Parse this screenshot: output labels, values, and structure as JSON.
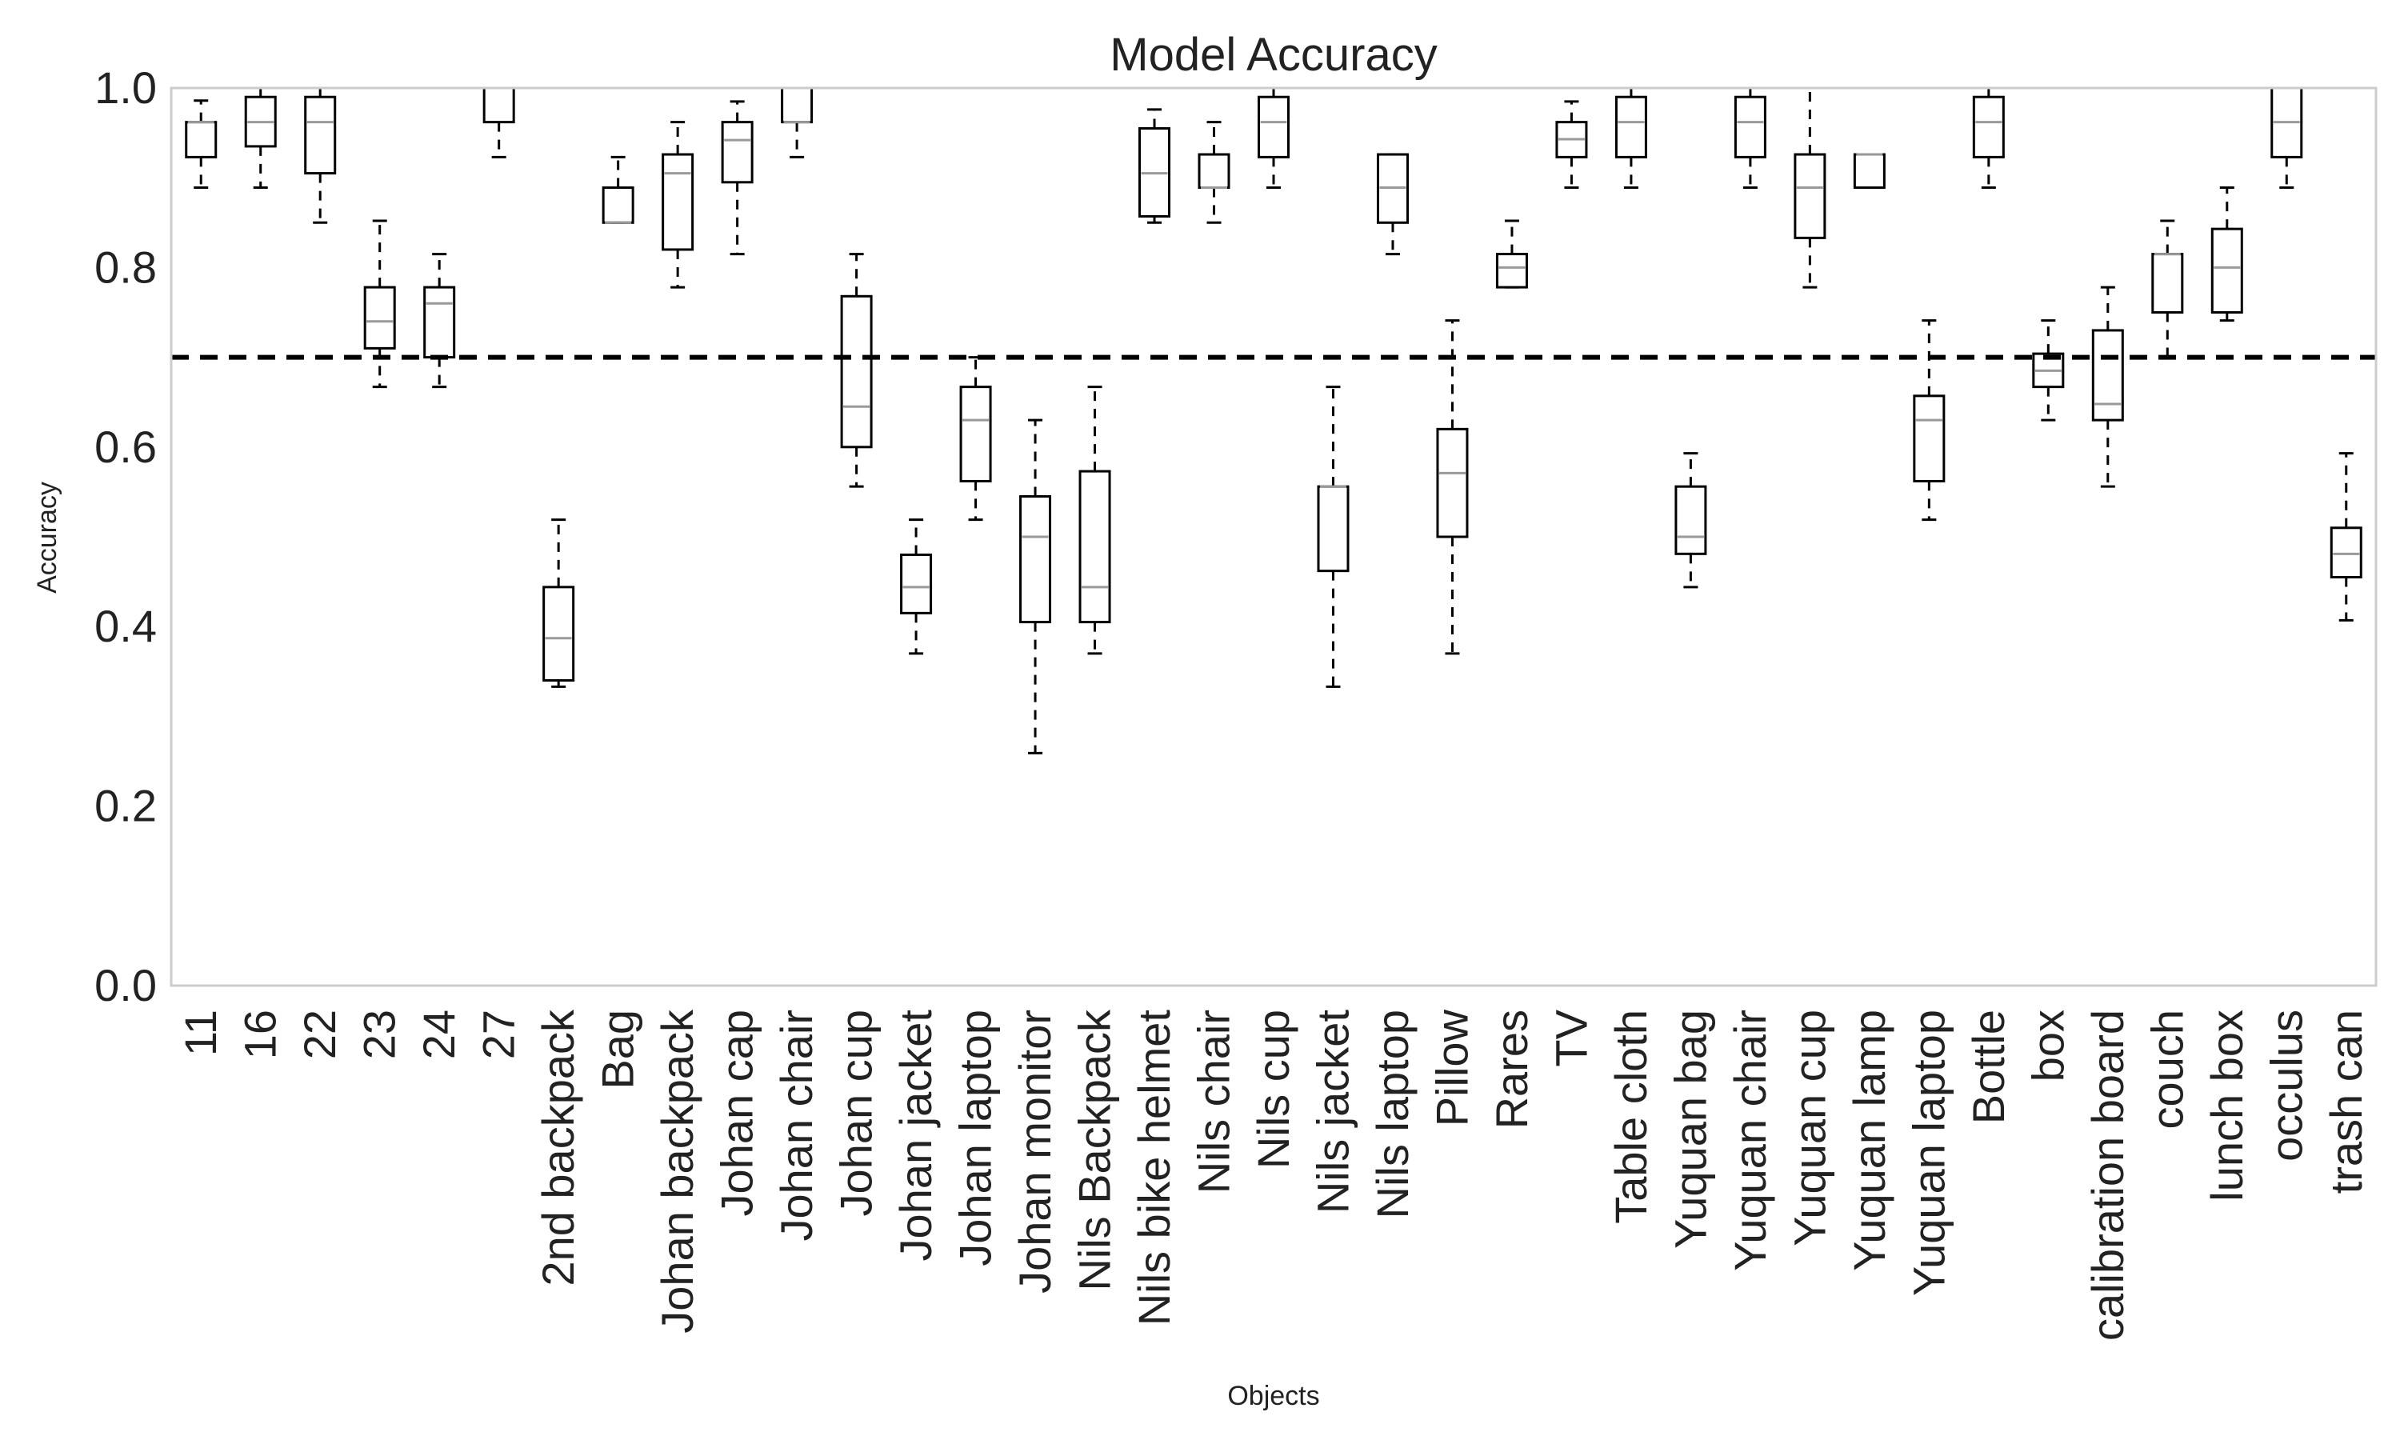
{
  "chart_data": {
    "type": "box",
    "title": "Model Accuracy",
    "xlabel": "Objects",
    "ylabel": "Accuracy",
    "ylim": [
      0.0,
      1.0
    ],
    "yticks": [
      "0.0",
      "0.2",
      "0.4",
      "0.6",
      "0.8",
      "1.0"
    ],
    "grid": false,
    "reference_line": {
      "y": 0.7,
      "style": "dashed",
      "color": "#000000"
    },
    "colors": {
      "box": "#000000",
      "median": "#999999",
      "frame": "#cccccc"
    },
    "categories": [
      "11",
      "16",
      "22",
      "23",
      "24",
      "27",
      "2nd backpack",
      "Bag",
      "Johan backpack",
      "Johan cap",
      "Johan chair",
      "Johan cup",
      "Johan jacket",
      "Johan laptop",
      "Johan monitor",
      "Nils Backpack",
      "Nils bike helmet",
      "Nils chair",
      "Nils cup",
      "Nils jacket",
      "Nils laptop",
      "Pillow",
      "Rares",
      "TV",
      "Table cloth",
      "Yuquan bag",
      "Yuquan chair",
      "Yuquan cup",
      "Yuquan lamp",
      "Yuquan laptop",
      "Bottle",
      "box",
      "calibration board",
      "couch",
      "lunch box",
      "occulus",
      "trash can"
    ],
    "boxes": [
      {
        "whislo": 0.889,
        "q1": 0.923,
        "med": 0.962,
        "q3": 0.962,
        "whishi": 0.986
      },
      {
        "whislo": 0.889,
        "q1": 0.935,
        "med": 0.962,
        "q3": 0.99,
        "whishi": 1.0
      },
      {
        "whislo": 0.85,
        "q1": 0.905,
        "med": 0.962,
        "q3": 0.99,
        "whishi": 1.0
      },
      {
        "whislo": 0.667,
        "q1": 0.71,
        "med": 0.74,
        "q3": 0.778,
        "whishi": 0.852
      },
      {
        "whislo": 0.667,
        "q1": 0.7,
        "med": 0.76,
        "q3": 0.778,
        "whishi": 0.815
      },
      {
        "whislo": 0.923,
        "q1": 0.962,
        "med": 1.0,
        "q3": 1.0,
        "whishi": 1.0
      },
      {
        "whislo": 0.333,
        "q1": 0.34,
        "med": 0.387,
        "q3": 0.444,
        "whishi": 0.519
      },
      {
        "whislo": 0.85,
        "q1": 0.85,
        "med": 0.85,
        "q3": 0.889,
        "whishi": 0.923
      },
      {
        "whislo": 0.778,
        "q1": 0.82,
        "med": 0.905,
        "q3": 0.926,
        "whishi": 0.962
      },
      {
        "whislo": 0.815,
        "q1": 0.895,
        "med": 0.942,
        "q3": 0.962,
        "whishi": 0.985
      },
      {
        "whislo": 0.923,
        "q1": 0.962,
        "med": 0.962,
        "q3": 1.0,
        "whishi": 1.0
      },
      {
        "whislo": 0.556,
        "q1": 0.6,
        "med": 0.645,
        "q3": 0.768,
        "whishi": 0.815
      },
      {
        "whislo": 0.37,
        "q1": 0.415,
        "med": 0.444,
        "q3": 0.48,
        "whishi": 0.519
      },
      {
        "whislo": 0.519,
        "q1": 0.562,
        "med": 0.63,
        "q3": 0.667,
        "whishi": 0.7
      },
      {
        "whislo": 0.259,
        "q1": 0.405,
        "med": 0.5,
        "q3": 0.545,
        "whishi": 0.63
      },
      {
        "whislo": 0.37,
        "q1": 0.405,
        "med": 0.444,
        "q3": 0.573,
        "whishi": 0.667
      },
      {
        "whislo": 0.85,
        "q1": 0.857,
        "med": 0.905,
        "q3": 0.955,
        "whishi": 0.976
      },
      {
        "whislo": 0.85,
        "q1": 0.889,
        "med": 0.889,
        "q3": 0.926,
        "whishi": 0.962
      },
      {
        "whislo": 0.889,
        "q1": 0.923,
        "med": 0.962,
        "q3": 0.99,
        "whishi": 1.0
      },
      {
        "whislo": 0.333,
        "q1": 0.462,
        "med": 0.556,
        "q3": 0.556,
        "whishi": 0.667
      },
      {
        "whislo": 0.815,
        "q1": 0.85,
        "med": 0.889,
        "q3": 0.926,
        "whishi": 0.926
      },
      {
        "whislo": 0.37,
        "q1": 0.5,
        "med": 0.571,
        "q3": 0.62,
        "whishi": 0.741
      },
      {
        "whislo": 0.778,
        "q1": 0.778,
        "med": 0.8,
        "q3": 0.815,
        "whishi": 0.852
      },
      {
        "whislo": 0.889,
        "q1": 0.923,
        "med": 0.943,
        "q3": 0.962,
        "whishi": 0.985
      },
      {
        "whislo": 0.889,
        "q1": 0.923,
        "med": 0.962,
        "q3": 0.99,
        "whishi": 1.0
      },
      {
        "whislo": 0.444,
        "q1": 0.481,
        "med": 0.5,
        "q3": 0.556,
        "whishi": 0.593
      },
      {
        "whislo": 0.889,
        "q1": 0.923,
        "med": 0.962,
        "q3": 0.99,
        "whishi": 1.0
      },
      {
        "whislo": 0.778,
        "q1": 0.833,
        "med": 0.889,
        "q3": 0.926,
        "whishi": 1.0
      },
      {
        "whislo": 0.889,
        "q1": 0.889,
        "med": 0.926,
        "q3": 0.926,
        "whishi": 0.926
      },
      {
        "whislo": 0.519,
        "q1": 0.562,
        "med": 0.63,
        "q3": 0.657,
        "whishi": 0.741
      },
      {
        "whislo": 0.889,
        "q1": 0.923,
        "med": 0.962,
        "q3": 0.99,
        "whishi": 1.0
      },
      {
        "whislo": 0.63,
        "q1": 0.667,
        "med": 0.685,
        "q3": 0.704,
        "whishi": 0.741
      },
      {
        "whislo": 0.556,
        "q1": 0.63,
        "med": 0.648,
        "q3": 0.73,
        "whishi": 0.778
      },
      {
        "whislo": 0.7,
        "q1": 0.75,
        "med": 0.815,
        "q3": 0.815,
        "whishi": 0.852
      },
      {
        "whislo": 0.741,
        "q1": 0.75,
        "med": 0.8,
        "q3": 0.843,
        "whishi": 0.889
      },
      {
        "whislo": 0.889,
        "q1": 0.923,
        "med": 0.962,
        "q3": 1.0,
        "whishi": 1.0
      },
      {
        "whislo": 0.407,
        "q1": 0.455,
        "med": 0.481,
        "q3": 0.51,
        "whishi": 0.593
      }
    ]
  }
}
